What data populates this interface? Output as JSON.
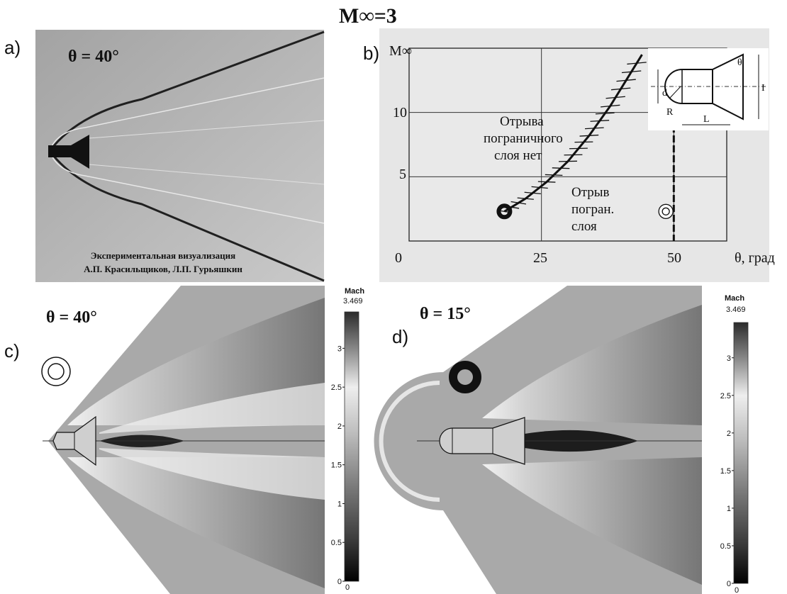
{
  "main_title": "M∞=3",
  "panels": {
    "a": {
      "label": "a)",
      "theta": "θ = 40°",
      "credit_line1": "Экспериментальная визуализация",
      "credit_line2": "А.П. Красильщиков, Л.П. Гурьяшкин"
    },
    "b": {
      "label": "b)",
      "y_axis_label": "M∞",
      "x_axis_label": "θ, град",
      "y_ticks": [
        "0",
        "5",
        "10"
      ],
      "x_ticks": [
        "25",
        "50"
      ],
      "region_no_sep": [
        "Отрыва",
        "пограничного",
        "слоя нет"
      ],
      "region_sep": [
        "Отрыв",
        "погран.",
        "слоя"
      ],
      "sketch_labels": {
        "d": "d",
        "R": "R",
        "L": "L",
        "I": "I",
        "theta": "θ"
      }
    },
    "c": {
      "label": "c)",
      "theta": "θ = 40°"
    },
    "d": {
      "label": "d)",
      "theta": "θ = 15°"
    }
  },
  "colorbar": {
    "title": "Mach",
    "max": "3.469",
    "ticks": [
      "3",
      "2.5",
      "2",
      "1.5",
      "1",
      "0.5",
      "0"
    ],
    "min": "0"
  },
  "chart_data": {
    "type": "line",
    "title": "",
    "xlabel": "θ, град",
    "ylabel": "M∞",
    "xlim": [
      0,
      60
    ],
    "ylim": [
      0,
      15
    ],
    "series": [
      {
        "values_x": [
          18,
          22,
          26,
          30,
          34,
          38,
          41,
          44
        ],
        "values_y": [
          2.3,
          3.3,
          4.6,
          6.2,
          8.2,
          10.5,
          12.5,
          14.5
        ]
      }
    ],
    "points": [
      {
        "x": 18,
        "y": 2.3,
        "marker": "filled-ring"
      },
      {
        "x": 48.5,
        "y": 2.3,
        "marker": "open-ring"
      }
    ],
    "vertical_dashed_line_x": 50
  }
}
